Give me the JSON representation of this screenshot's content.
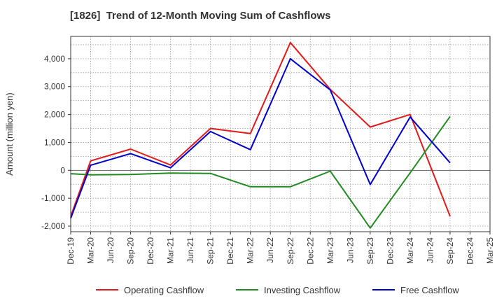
{
  "chart_data": {
    "type": "line",
    "title": "[1826]  Trend of 12-Month Moving Sum of Cashflows",
    "xlabel": "",
    "ylabel": "Amount (million yen)",
    "categories": [
      "Dec-19",
      "Mar-20",
      "Jun-20",
      "Sep-20",
      "Dec-20",
      "Mar-21",
      "Jun-21",
      "Sep-21",
      "Dec-21",
      "Mar-22",
      "Jun-22",
      "Sep-22",
      "Dec-22",
      "Mar-23",
      "Jun-23",
      "Sep-23",
      "Dec-23",
      "Mar-24",
      "Jun-24",
      "Sep-24",
      "Dec-24",
      "Mar-25"
    ],
    "ylim": [
      -2200,
      4800
    ],
    "yticks": [
      -2000,
      -1000,
      0,
      1000,
      2000,
      3000,
      4000
    ],
    "ytick_labels": [
      "-2,000",
      "-1,000",
      "0",
      "1,000",
      "2,000",
      "3,000",
      "4,000"
    ],
    "grid": true,
    "legend_position": "bottom",
    "series": [
      {
        "name": "Operating Cashflow",
        "color": "#e31a1c",
        "values": [
          -1650,
          340,
          null,
          760,
          null,
          190,
          null,
          1500,
          null,
          1320,
          null,
          4580,
          null,
          2900,
          null,
          1550,
          null,
          2000,
          null,
          -1650,
          null,
          null
        ]
      },
      {
        "name": "Investing Cashflow",
        "color": "#228b22",
        "values": [
          -120,
          -160,
          null,
          -150,
          null,
          -100,
          null,
          -110,
          null,
          -590,
          null,
          -590,
          null,
          -30,
          null,
          -2070,
          null,
          -90,
          null,
          1930,
          null,
          null
        ]
      },
      {
        "name": "Free Cashflow",
        "color": "#0000cc",
        "values": [
          -1720,
          180,
          null,
          600,
          null,
          90,
          null,
          1390,
          null,
          740,
          null,
          4000,
          null,
          2880,
          null,
          -510,
          null,
          1910,
          null,
          270,
          null,
          null
        ]
      }
    ]
  }
}
